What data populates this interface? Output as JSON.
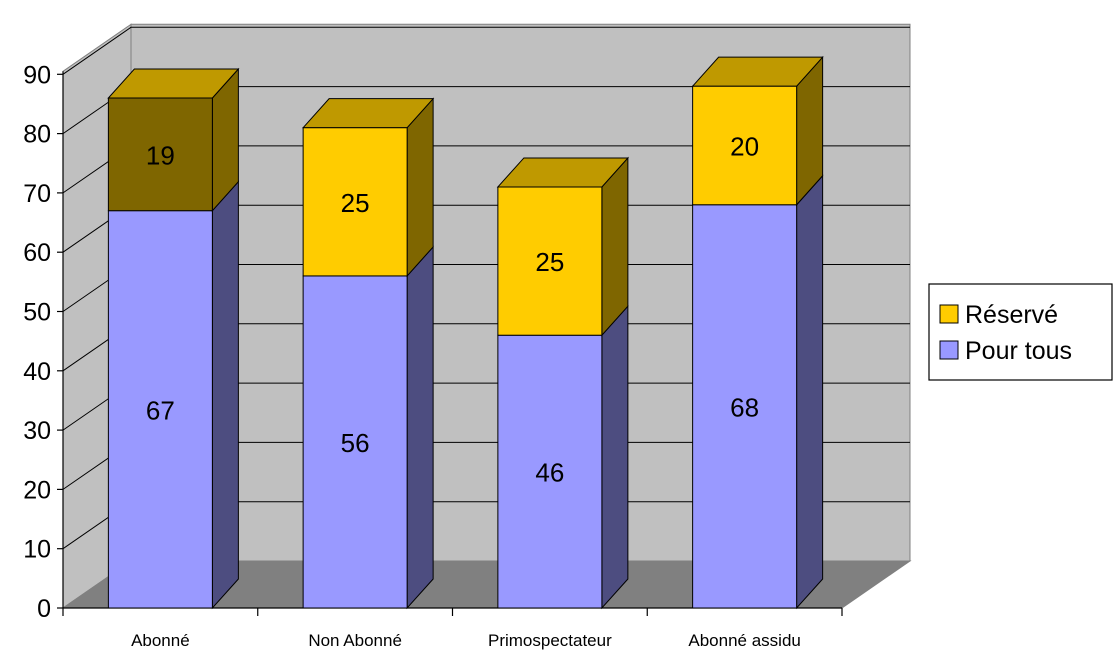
{
  "chart_data": {
    "type": "bar",
    "stacked": true,
    "three_d": true,
    "categories": [
      "Abonné",
      "Non Abonné",
      "Primospectateur",
      "Abonné assidu"
    ],
    "series": [
      {
        "name": "Pour tous",
        "values": [
          67,
          56,
          46,
          68
        ],
        "color": "#9999FF"
      },
      {
        "name": "Réservé",
        "values": [
          19,
          25,
          25,
          20
        ],
        "color": "#FFCC00"
      }
    ],
    "highlight": {
      "category_index": 0,
      "series_index": 1,
      "color": "#7F6600"
    },
    "ylim": [
      0,
      90
    ],
    "yticks": [
      0,
      10,
      20,
      30,
      40,
      50,
      60,
      70,
      80,
      90
    ],
    "grid": true,
    "legend_position": "right",
    "colors": {
      "wall": "#C0C0C0",
      "floor": "#808080",
      "gridline": "#000000",
      "pour_tous_side": "#4D4D80",
      "reserve_side": "#7F6600",
      "reserve_top": "#BF9900"
    }
  }
}
